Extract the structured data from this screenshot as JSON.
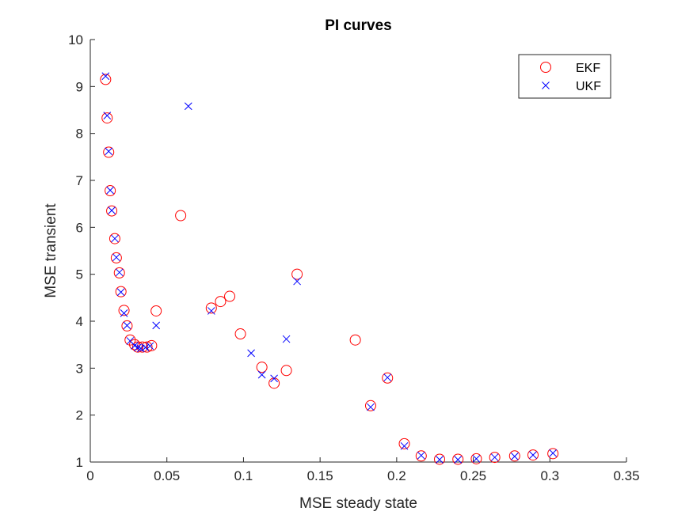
{
  "chart_data": {
    "type": "scatter",
    "title": "PI curves",
    "xlabel": "MSE steady state",
    "ylabel": "MSE transient",
    "xlim": [
      0,
      0.35
    ],
    "ylim": [
      1,
      10
    ],
    "xticks": [
      0,
      0.05,
      0.1,
      0.15,
      0.2,
      0.25,
      0.3,
      0.35
    ],
    "xtick_labels": [
      "0",
      "0.05",
      "0.1",
      "0.15",
      "0.2",
      "0.25",
      "0.3",
      "0.35"
    ],
    "yticks": [
      1,
      2,
      3,
      4,
      5,
      6,
      7,
      8,
      9,
      10
    ],
    "ytick_labels": [
      "1",
      "2",
      "3",
      "4",
      "5",
      "6",
      "7",
      "8",
      "9",
      "10"
    ],
    "grid": false,
    "legend_position": "top-right",
    "series": [
      {
        "name": "EKF",
        "marker": "circle",
        "color": "#ff0000",
        "points": [
          [
            0.01,
            9.15
          ],
          [
            0.011,
            8.33
          ],
          [
            0.012,
            7.6
          ],
          [
            0.013,
            6.78
          ],
          [
            0.014,
            6.35
          ],
          [
            0.016,
            5.76
          ],
          [
            0.017,
            5.35
          ],
          [
            0.019,
            5.03
          ],
          [
            0.02,
            4.63
          ],
          [
            0.022,
            4.23
          ],
          [
            0.024,
            3.9
          ],
          [
            0.026,
            3.6
          ],
          [
            0.029,
            3.5
          ],
          [
            0.031,
            3.45
          ],
          [
            0.034,
            3.45
          ],
          [
            0.037,
            3.45
          ],
          [
            0.04,
            3.48
          ],
          [
            0.043,
            4.22
          ],
          [
            0.059,
            6.25
          ],
          [
            0.079,
            4.28
          ],
          [
            0.085,
            4.42
          ],
          [
            0.091,
            4.53
          ],
          [
            0.098,
            3.73
          ],
          [
            0.112,
            3.02
          ],
          [
            0.12,
            2.68
          ],
          [
            0.128,
            2.95
          ],
          [
            0.135,
            5.0
          ],
          [
            0.173,
            3.6
          ],
          [
            0.183,
            2.2
          ],
          [
            0.194,
            2.79
          ],
          [
            0.205,
            1.39
          ],
          [
            0.216,
            1.13
          ],
          [
            0.228,
            1.06
          ],
          [
            0.24,
            1.06
          ],
          [
            0.252,
            1.07
          ],
          [
            0.264,
            1.1
          ],
          [
            0.277,
            1.13
          ],
          [
            0.289,
            1.15
          ],
          [
            0.302,
            1.18
          ]
        ]
      },
      {
        "name": "UKF",
        "marker": "x",
        "color": "#0000ff",
        "points": [
          [
            0.01,
            9.22
          ],
          [
            0.011,
            8.38
          ],
          [
            0.012,
            7.62
          ],
          [
            0.013,
            6.79
          ],
          [
            0.014,
            6.36
          ],
          [
            0.016,
            5.76
          ],
          [
            0.017,
            5.36
          ],
          [
            0.019,
            5.04
          ],
          [
            0.02,
            4.62
          ],
          [
            0.022,
            4.17
          ],
          [
            0.024,
            3.91
          ],
          [
            0.026,
            3.58
          ],
          [
            0.029,
            3.48
          ],
          [
            0.031,
            3.44
          ],
          [
            0.033,
            3.42
          ],
          [
            0.036,
            3.44
          ],
          [
            0.039,
            3.47
          ],
          [
            0.043,
            3.91
          ],
          [
            0.064,
            8.58
          ],
          [
            0.079,
            4.22
          ],
          [
            0.105,
            3.32
          ],
          [
            0.112,
            2.86
          ],
          [
            0.12,
            2.78
          ],
          [
            0.128,
            3.62
          ],
          [
            0.135,
            4.85
          ],
          [
            0.183,
            2.17
          ],
          [
            0.194,
            2.8
          ],
          [
            0.205,
            1.34
          ],
          [
            0.216,
            1.14
          ],
          [
            0.228,
            1.05
          ],
          [
            0.24,
            1.05
          ],
          [
            0.252,
            1.07
          ],
          [
            0.264,
            1.1
          ],
          [
            0.277,
            1.12
          ],
          [
            0.289,
            1.15
          ],
          [
            0.302,
            1.19
          ]
        ]
      }
    ]
  }
}
